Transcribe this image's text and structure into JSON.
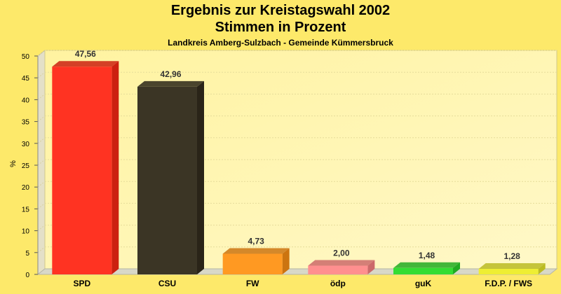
{
  "chart_data": {
    "type": "bar",
    "title": "Ergebnis zur Kreistagswahl 2002",
    "subtitle": "Stimmen in Prozent",
    "subtitle2": "Landkreis Amberg-Sulzbach - Gemeinde Kümmersbruck",
    "xlabel": "",
    "ylabel": "%",
    "ylim": [
      0,
      50
    ],
    "yticks": [
      0,
      5,
      10,
      15,
      20,
      25,
      30,
      35,
      40,
      45,
      50
    ],
    "grid": true,
    "categories": [
      "SPD",
      "CSU",
      "FW",
      "ödp",
      "guK",
      "F.D.P. / FWS"
    ],
    "values": [
      47.56,
      42.96,
      4.73,
      2.0,
      1.48,
      1.28
    ],
    "value_labels": [
      "47,56",
      "42,96",
      "4,73",
      "2,00",
      "1,48",
      "1,28"
    ],
    "colors": [
      "#ff3322",
      "#3b3525",
      "#ff9922",
      "#ff8f8f",
      "#33dd33",
      "#eeee33"
    ],
    "side_colors": [
      "#cc2010",
      "#2a2418",
      "#cc7410",
      "#cc6a6a",
      "#22aa22",
      "#bbbb22"
    ],
    "plot_background": "#fff5a0",
    "floor_color": "#d8d8c8"
  }
}
